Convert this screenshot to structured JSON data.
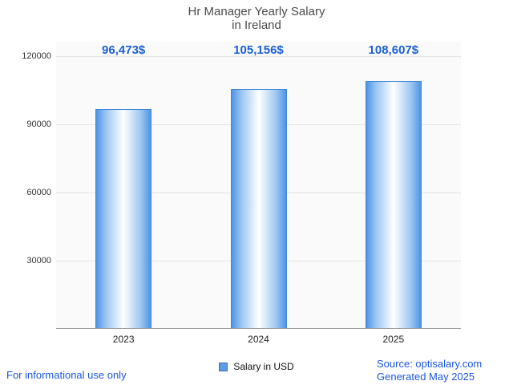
{
  "chart_data": {
    "type": "bar",
    "title_line1": "Hr Manager Yearly Salary",
    "title_line2": "in Ireland",
    "categories": [
      "2023",
      "2024",
      "2025"
    ],
    "values": [
      96473,
      105156,
      108607
    ],
    "value_labels": [
      "96,473$",
      "105,156$",
      "108,607$"
    ],
    "yticks": [
      30000,
      60000,
      90000,
      120000
    ],
    "ylim": [
      0,
      120000
    ],
    "legend": "Salary in USD",
    "grid": "horizontal",
    "bar_color_edge": "#4e94e4",
    "bar_color_center": "#ffffff",
    "value_label_color": "#1a5fd6"
  },
  "footer": {
    "left": "For informational use only",
    "source": "Source: optisalary.com",
    "generated": "Generated May 2025"
  }
}
